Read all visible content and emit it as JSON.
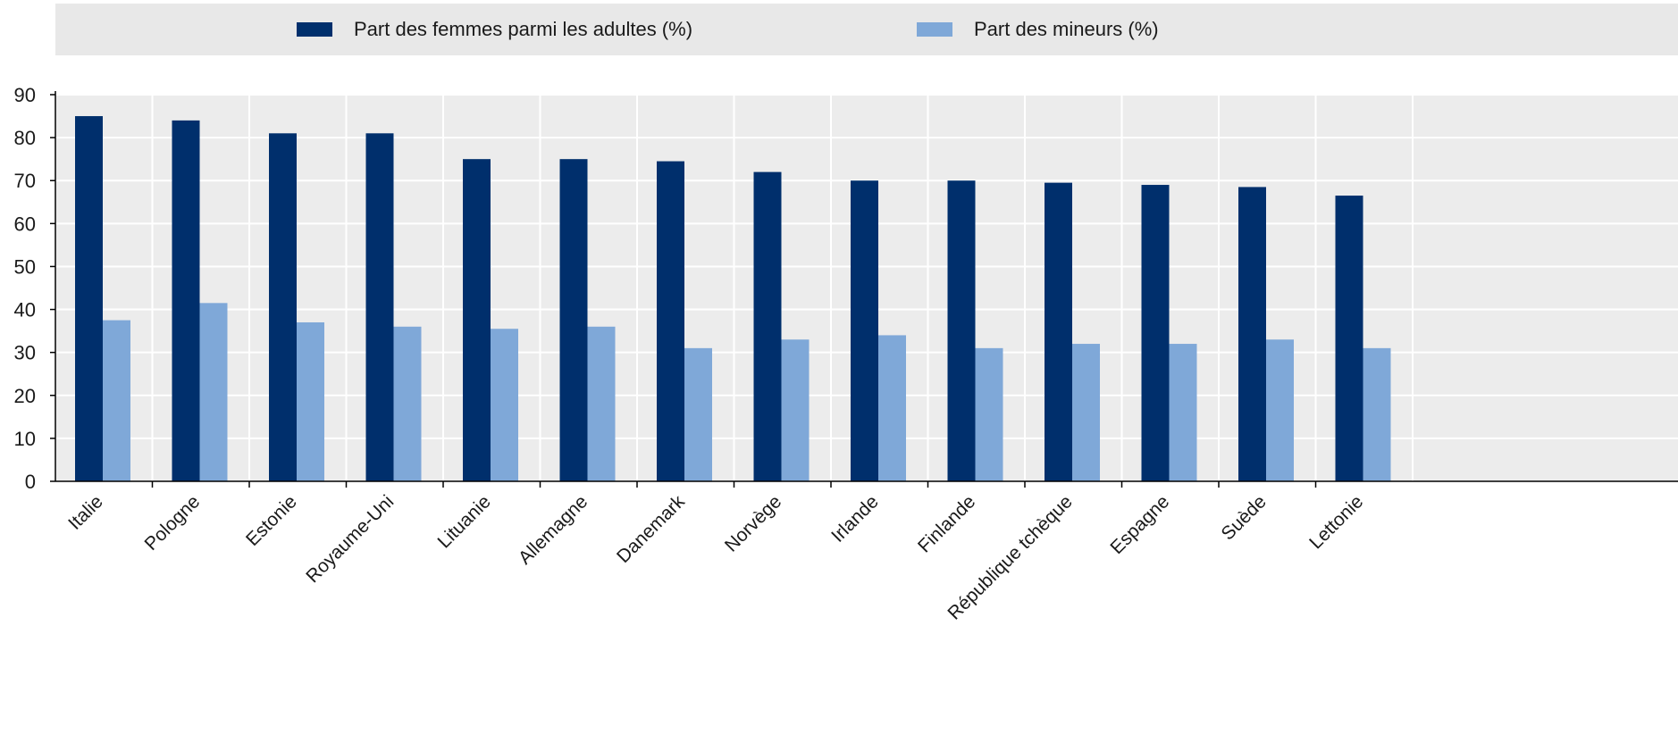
{
  "chart_data": {
    "type": "bar",
    "categories": [
      "Italie",
      "Pologne",
      "Estonie",
      "Royaume-Uni",
      "Lituanie",
      "Allemagne",
      "Danemark",
      "Norvège",
      "Irlande",
      "Finlande",
      "République tchèque",
      "Espagne",
      "Suède",
      "Lettonie"
    ],
    "series": [
      {
        "name": "Part des femmes parmi les adultes (%)",
        "color": "#002f6c",
        "values": [
          85,
          84,
          81,
          81,
          75,
          75,
          74.5,
          72,
          70,
          70,
          69.5,
          69,
          68.5,
          66.5
        ]
      },
      {
        "name": "Part des mineurs (%)",
        "color": "#7fa8d8",
        "values": [
          37.5,
          41.5,
          37,
          36,
          35.5,
          36,
          31,
          33,
          34,
          31,
          32,
          32,
          33,
          31
        ]
      }
    ],
    "ylim": [
      0,
      90
    ],
    "yticks": [
      0,
      10,
      20,
      30,
      40,
      50,
      60,
      70,
      80,
      90
    ],
    "grid": true,
    "legend_position": "top",
    "plot_background": "#ececec",
    "grid_color": "#ffffff"
  }
}
